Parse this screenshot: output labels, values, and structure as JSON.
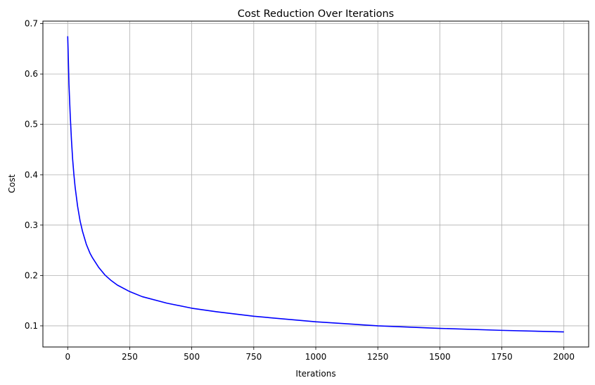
{
  "chart_data": {
    "type": "line",
    "title": "Cost Reduction Over Iterations",
    "xlabel": "Iterations",
    "ylabel": "Cost",
    "xlim": [
      -100,
      2100
    ],
    "ylim": [
      0.058,
      0.705
    ],
    "grid": true,
    "line_color": "#0000ff",
    "grid_color": "#b0b0b0",
    "x_ticks": [
      0,
      250,
      500,
      750,
      1000,
      1250,
      1500,
      1750,
      2000
    ],
    "x_tick_labels": [
      "0",
      "250",
      "500",
      "750",
      "1000",
      "1250",
      "1500",
      "1750",
      "2000"
    ],
    "y_ticks": [
      0.1,
      0.2,
      0.3,
      0.4,
      0.5,
      0.6,
      0.7
    ],
    "y_tick_labels": [
      "0.1",
      "0.2",
      "0.3",
      "0.4",
      "0.5",
      "0.6",
      "0.7"
    ],
    "series": [
      {
        "x": [
          0,
          2,
          5,
          10,
          15,
          20,
          25,
          30,
          40,
          50,
          60,
          75,
          90,
          100,
          125,
          150,
          175,
          200,
          250,
          300,
          400,
          500,
          600,
          750,
          1000,
          1250,
          1500,
          1750,
          2000
        ],
        "y": [
          0.675,
          0.64,
          0.58,
          0.52,
          0.47,
          0.43,
          0.4,
          0.375,
          0.337,
          0.308,
          0.287,
          0.262,
          0.244,
          0.235,
          0.216,
          0.201,
          0.19,
          0.181,
          0.168,
          0.158,
          0.145,
          0.135,
          0.128,
          0.119,
          0.108,
          0.1,
          0.095,
          0.091,
          0.088
        ]
      }
    ]
  }
}
